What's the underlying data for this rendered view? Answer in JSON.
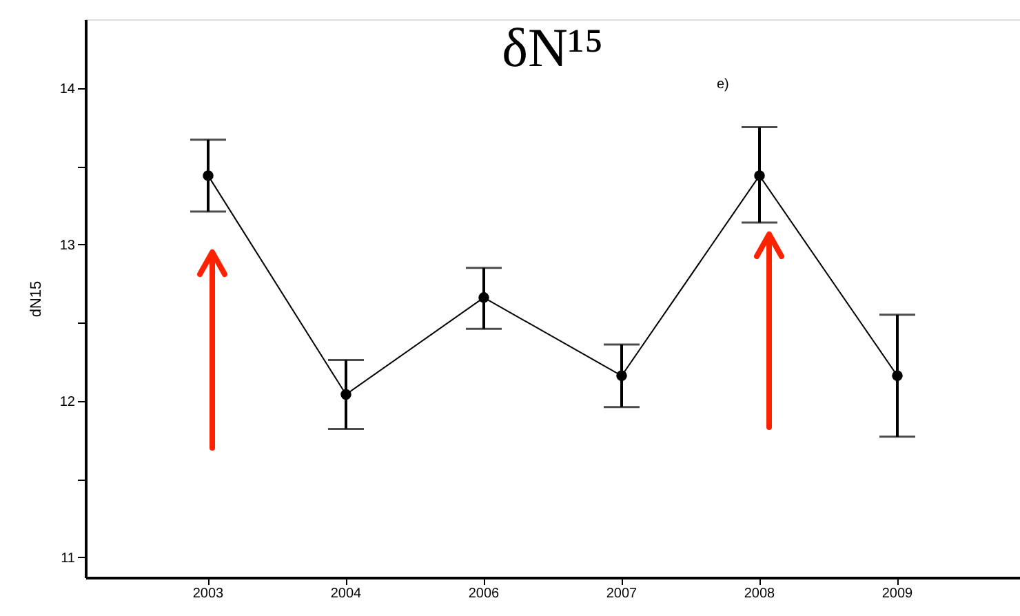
{
  "chart_data": {
    "type": "line",
    "title": "δN¹⁵",
    "ylabel": "dN15",
    "categories": [
      "2003",
      "2004",
      "2006",
      "2007",
      "2008",
      "2009"
    ],
    "series": [
      {
        "color": "#000000",
        "values": [
          13.44,
          12.04,
          12.66,
          12.16,
          13.44,
          12.16
        ],
        "errors": [
          [
            13.21,
            13.67
          ],
          [
            11.82,
            12.26
          ],
          [
            12.46,
            12.85
          ],
          [
            11.96,
            12.36
          ],
          [
            13.14,
            13.75
          ],
          [
            11.77,
            12.55
          ]
        ]
      }
    ],
    "ylim": [
      10.87,
      14.44
    ],
    "yticks": [
      {
        "value": 11,
        "label": "11"
      },
      {
        "value": 11.5,
        "label": null
      },
      {
        "value": 12,
        "label": "12"
      },
      {
        "value": 12.5,
        "label": null
      },
      {
        "value": 13,
        "label": "13"
      },
      {
        "value": 13.5,
        "label": null
      },
      {
        "value": 14,
        "label": "14"
      }
    ],
    "annotations": [
      "e)"
    ],
    "marker": "circle",
    "line_style": "solid",
    "grid": false
  }
}
